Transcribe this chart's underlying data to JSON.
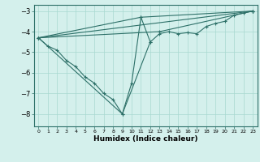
{
  "xlabel": "Humidex (Indice chaleur)",
  "bg_color": "#d4f0ec",
  "line_color": "#2d7068",
  "grid_color": "#a8d8d0",
  "xlim": [
    -0.5,
    23.5
  ],
  "ylim": [
    -8.6,
    -2.7
  ],
  "xticks": [
    0,
    1,
    2,
    3,
    4,
    5,
    6,
    7,
    8,
    9,
    10,
    11,
    12,
    13,
    14,
    15,
    16,
    17,
    18,
    19,
    20,
    21,
    22,
    23
  ],
  "yticks": [
    -8,
    -7,
    -6,
    -5,
    -4,
    -3
  ],
  "series_main": [
    [
      0,
      -4.3
    ],
    [
      1,
      -4.7
    ],
    [
      2,
      -4.9
    ],
    [
      3,
      -5.4
    ],
    [
      4,
      -5.7
    ],
    [
      5,
      -6.2
    ],
    [
      6,
      -6.5
    ],
    [
      7,
      -7.0
    ],
    [
      8,
      -7.3
    ],
    [
      9,
      -8.0
    ],
    [
      10,
      -6.5
    ],
    [
      11,
      -3.3
    ],
    [
      12,
      -4.5
    ],
    [
      13,
      -4.1
    ],
    [
      14,
      -4.0
    ],
    [
      15,
      -4.1
    ],
    [
      16,
      -4.05
    ],
    [
      17,
      -4.1
    ],
    [
      18,
      -3.75
    ],
    [
      19,
      -3.6
    ],
    [
      20,
      -3.5
    ],
    [
      21,
      -3.2
    ],
    [
      22,
      -3.1
    ],
    [
      23,
      -3.0
    ]
  ],
  "line2": [
    [
      0,
      -4.3
    ],
    [
      23,
      -3.0
    ]
  ],
  "line3": [
    [
      0,
      -4.3
    ],
    [
      9,
      -8.0
    ],
    [
      12,
      -4.5
    ]
  ],
  "line4": [
    [
      0,
      -4.3
    ],
    [
      11,
      -3.3
    ],
    [
      23,
      -3.0
    ]
  ],
  "line5": [
    [
      0,
      -4.3
    ],
    [
      13,
      -4.0
    ],
    [
      23,
      -3.0
    ]
  ]
}
